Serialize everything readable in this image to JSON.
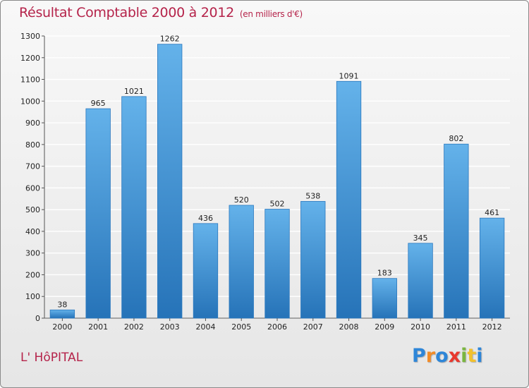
{
  "title": "Résultat Comptable 2000 à 2012",
  "subtitle": "(en milliers d'€)",
  "place": "L' HôPITAL",
  "logo": {
    "letters": [
      "P",
      "r",
      "o",
      "x",
      "i",
      "t",
      "i"
    ],
    "colors": [
      "#2e86d8",
      "#f28c28",
      "#2e86d8",
      "#e8382e",
      "#7ab640",
      "#f2c12e",
      "#2e86d8"
    ]
  },
  "colors": {
    "bar": "#3c94dc",
    "bar_light": "#64b2ea",
    "bar_dark": "#2673b8",
    "title": "#b5234a"
  },
  "chart_data": {
    "type": "bar",
    "categories": [
      "2000",
      "2001",
      "2002",
      "2003",
      "2004",
      "2005",
      "2006",
      "2007",
      "2008",
      "2009",
      "2010",
      "2011",
      "2012"
    ],
    "values": [
      38,
      965,
      1021,
      1262,
      436,
      520,
      502,
      538,
      1091,
      183,
      345,
      802,
      461
    ],
    "ylim": [
      0,
      1300
    ],
    "yticks": [
      0,
      100,
      200,
      300,
      400,
      500,
      600,
      700,
      800,
      900,
      1000,
      1100,
      1200,
      1300
    ],
    "grid": true
  }
}
